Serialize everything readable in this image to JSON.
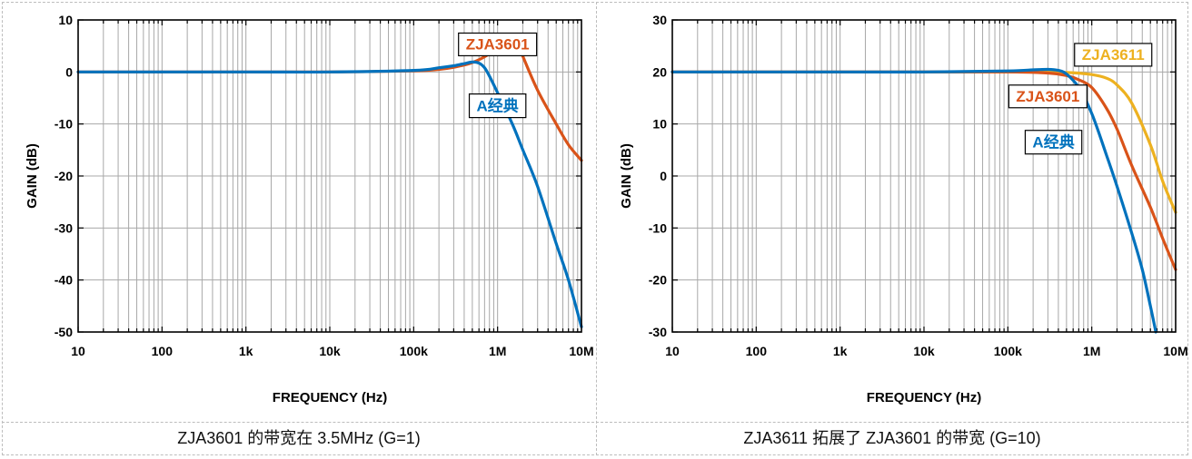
{
  "chart_data": [
    {
      "type": "line",
      "xlabel": "FREQUENCY (Hz)",
      "ylabel": "GAIN (dB)",
      "x_scale": "log",
      "xlim": [
        10,
        10000000
      ],
      "ylim": [
        -50,
        10
      ],
      "x_ticks": [
        10,
        100,
        1000,
        10000,
        100000,
        1000000,
        10000000
      ],
      "x_tick_labels": [
        "10",
        "100",
        "1k",
        "10k",
        "100k",
        "1M",
        "10M"
      ],
      "y_ticks": [
        10,
        0,
        -10,
        -20,
        -30,
        -40,
        -50
      ],
      "y_tick_labels": [
        "10",
        "0",
        "-10",
        "-20",
        "-30",
        "-40",
        "-50"
      ],
      "grid": true,
      "series": [
        {
          "name": "ZJA3601",
          "color": "#D95319",
          "x": [
            10,
            1000,
            10000,
            100000,
            200000,
            300000,
            500000,
            800000,
            1000000,
            1200000,
            1400000,
            1700000,
            2000000,
            3000000,
            5000000,
            7000000,
            10000000
          ],
          "y": [
            0,
            0,
            0,
            0.2,
            0.5,
            0.9,
            1.8,
            3.5,
            5.0,
            6.3,
            6.9,
            5.8,
            3.0,
            -3.5,
            -10.0,
            -14.0,
            -17.0
          ]
        },
        {
          "name": "A经典",
          "color": "#0072BD",
          "x": [
            10,
            1000,
            10000,
            100000,
            200000,
            300000,
            400000,
            500000,
            600000,
            700000,
            800000,
            1000000,
            1500000,
            2000000,
            3000000,
            5000000,
            7000000,
            10000000
          ],
          "y": [
            0,
            0,
            0,
            0.3,
            0.8,
            1.2,
            1.6,
            1.9,
            1.7,
            0.8,
            -0.8,
            -4.0,
            -10.0,
            -15.0,
            -22.0,
            -33.0,
            -40.0,
            -49.0
          ]
        }
      ],
      "annotations": [
        {
          "text": "ZJA3601",
          "color": "#D95319",
          "x": 1000000,
          "y": 5.3
        },
        {
          "text": "A经典",
          "color": "#0072BD",
          "x": 1000000,
          "y": -6.5
        }
      ]
    },
    {
      "type": "line",
      "xlabel": "FREQUENCY (Hz)",
      "ylabel": "GAIN (dB)",
      "x_scale": "log",
      "xlim": [
        10,
        10000000
      ],
      "ylim": [
        -30,
        30
      ],
      "x_ticks": [
        10,
        100,
        1000,
        10000,
        100000,
        1000000,
        10000000
      ],
      "x_tick_labels": [
        "10",
        "100",
        "1k",
        "10k",
        "100k",
        "1M",
        "10M"
      ],
      "y_ticks": [
        30,
        20,
        10,
        0,
        -10,
        -20,
        -30
      ],
      "y_tick_labels": [
        "30",
        "20",
        "10",
        "0",
        "-10",
        "-20",
        "-30"
      ],
      "grid": true,
      "series": [
        {
          "name": "ZJA3611",
          "color": "#EDB120",
          "x": [
            10,
            1000,
            10000,
            100000,
            500000,
            1000000,
            1500000,
            2000000,
            3000000,
            5000000,
            7000000,
            10000000
          ],
          "y": [
            20,
            20,
            20,
            20,
            19.9,
            19.5,
            18.8,
            17.5,
            14.0,
            6.0,
            -1.0,
            -7.0
          ]
        },
        {
          "name": "ZJA3601",
          "color": "#D95319",
          "x": [
            10,
            1000,
            10000,
            100000,
            300000,
            500000,
            700000,
            1000000,
            1500000,
            2000000,
            3000000,
            5000000,
            7000000,
            10000000
          ],
          "y": [
            20,
            20,
            20,
            20,
            19.8,
            19.3,
            18.5,
            17.0,
            13.0,
            9.0,
            2.0,
            -6.0,
            -12.0,
            -18.0
          ]
        },
        {
          "name": "A经典",
          "color": "#0072BD",
          "x": [
            10,
            1000,
            10000,
            100000,
            200000,
            300000,
            400000,
            500000,
            700000,
            1000000,
            1500000,
            2000000,
            3000000,
            4000000,
            5000000,
            5800000
          ],
          "y": [
            20,
            20,
            20,
            20.2,
            20.4,
            20.5,
            20.3,
            19.6,
            17.0,
            12.0,
            4.0,
            -2.0,
            -11.0,
            -18.0,
            -25.0,
            -30.0
          ]
        }
      ],
      "annotations": [
        {
          "text": "ZJA3611",
          "color": "#EDB120",
          "x": 1800000,
          "y": 23.3
        },
        {
          "text": "ZJA3601",
          "color": "#D95319",
          "x": 300000,
          "y": 15.3
        },
        {
          "text": "A经典",
          "color": "#0072BD",
          "x": 350000,
          "y": 6.5
        }
      ]
    }
  ],
  "captions": {
    "left": "ZJA3601 的带宽在 3.5MHz (G=1)",
    "right": "ZJA3611 拓展了 ZJA3601 的带宽 (G=10)"
  }
}
